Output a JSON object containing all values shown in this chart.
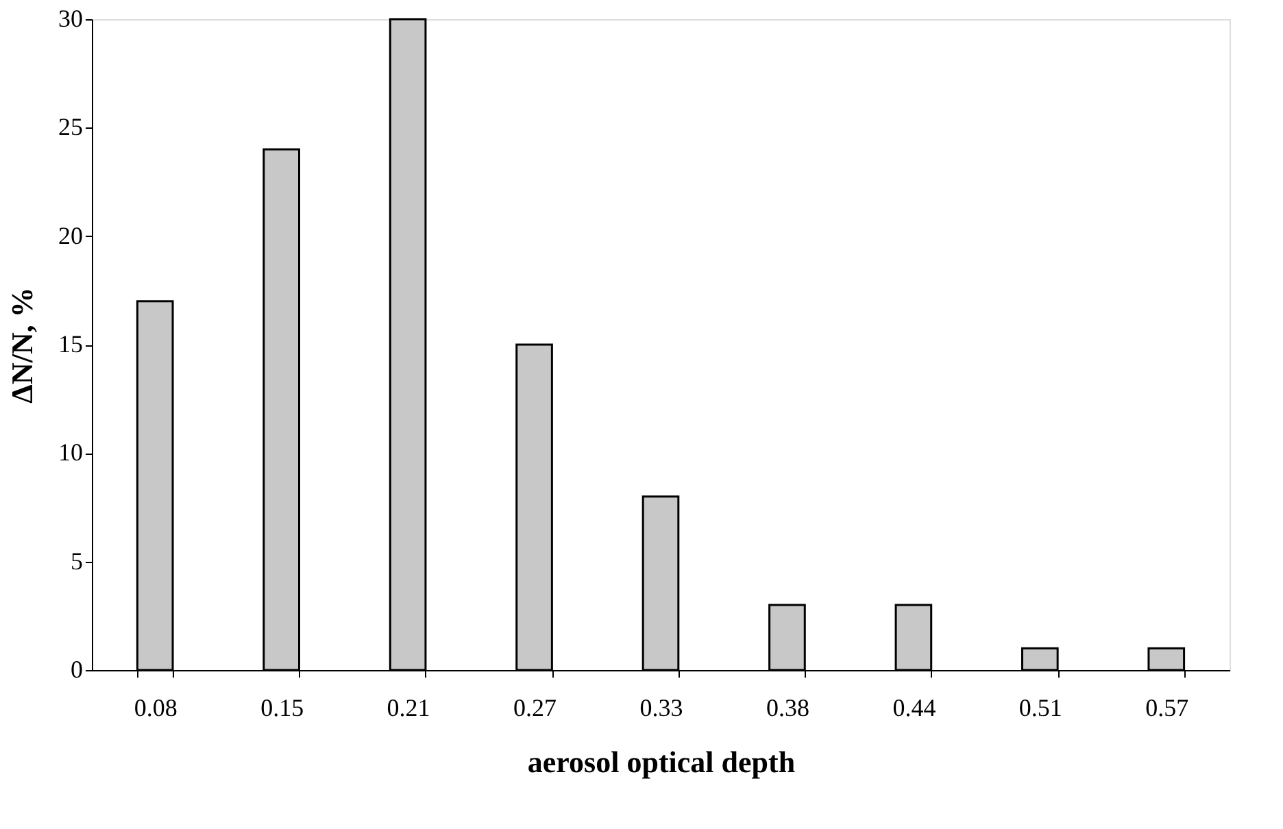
{
  "chart_data": {
    "type": "bar",
    "categories": [
      "0.08",
      "0.15",
      "0.21",
      "0.27",
      "0.33",
      "0.38",
      "0.44",
      "0.51",
      "0.57"
    ],
    "values": [
      17,
      24,
      30,
      15,
      8,
      3,
      3,
      1,
      1
    ],
    "color": "#c8c8c8",
    "xlabel": "aerosol optical depth",
    "ylabel": "ΔN/N, %",
    "ylim": [
      0,
      30
    ],
    "yticks": [
      0,
      5,
      10,
      15,
      20,
      25,
      30
    ],
    "grid": false
  }
}
